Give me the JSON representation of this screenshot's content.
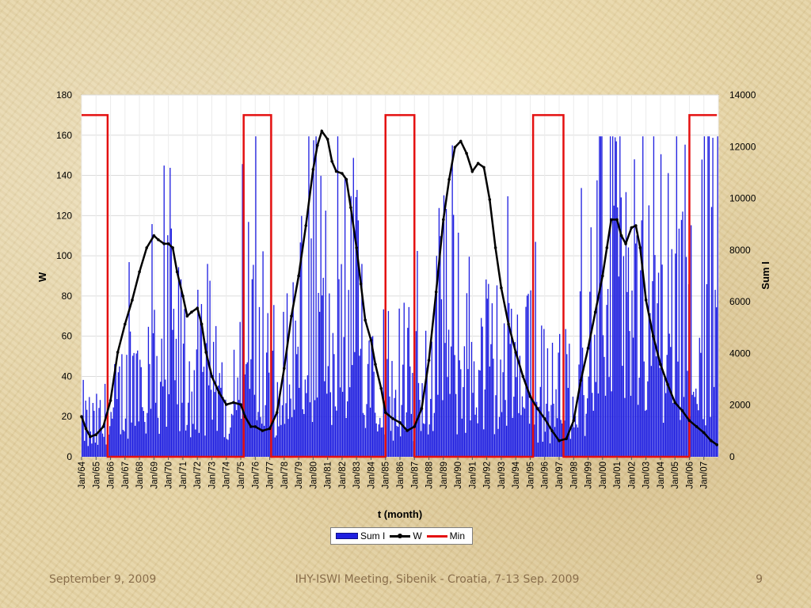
{
  "footer": {
    "date": "September 9, 2009",
    "meeting": "IHY-ISWI Meeting, Sibenik - Croatia, 7-13 Sep. 2009",
    "page": "9"
  },
  "colors": {
    "bars": "#1f1fe0",
    "w_line": "#000000",
    "min_line": "#e41010",
    "grid": "#dcdcdc"
  },
  "chart_data": {
    "type": "bar+line",
    "xlabel": "t (month)",
    "ylabel_left": "W",
    "ylabel_right": "Sum I",
    "ylim_left": [
      0,
      180
    ],
    "yticks_left": [
      0,
      20,
      40,
      60,
      80,
      100,
      120,
      140,
      160,
      180
    ],
    "ylim_right": [
      0,
      14000
    ],
    "yticks_right": [
      0,
      2000,
      4000,
      6000,
      8000,
      10000,
      12000,
      14000
    ],
    "grid": true,
    "legend_position": "bottom",
    "x_start": "Jan/64",
    "x_end": "Dec/07",
    "categories": [
      "Jan/64",
      "Jan/65",
      "Jan/66",
      "Jan/67",
      "Jan/68",
      "Jan/69",
      "Jan/70",
      "Jan/71",
      "Jan/72",
      "Jan/73",
      "Jan/74",
      "Jan/75",
      "Jan/76",
      "Jan/77",
      "Jan/78",
      "Jan/79",
      "Jan/80",
      "Jan/81",
      "Jan/82",
      "Jan/83",
      "Jan/84",
      "Jan/85",
      "Jan/86",
      "Jan/87",
      "Jan/88",
      "Jan/89",
      "Jan/90",
      "Jan/91",
      "Jan/92",
      "Jan/93",
      "Jan/94",
      "Jan/95",
      "Jan/96",
      "Jan/97",
      "Jan/98",
      "Jan/99",
      "Jan/00",
      "Jan/01",
      "Jan/02",
      "Jan/03",
      "Jan/04",
      "Jan/05",
      "Jan/06",
      "Jan/07"
    ],
    "series": [
      {
        "name": "Sum I",
        "type": "bar",
        "axis": "right",
        "note": "monthly values, Sum I units",
        "yearly_envelope": [
          1500,
          1300,
          1800,
          2800,
          4200,
          5000,
          4500,
          3800,
          3200,
          2700,
          2400,
          6500,
          4500,
          2800,
          3600,
          5200,
          6000,
          5500,
          5400,
          6200,
          4800,
          3500,
          3500,
          2800,
          4100,
          5200,
          4800,
          4200,
          4000,
          3800,
          3500,
          3600,
          2600,
          2400,
          3400,
          4400,
          6800,
          7300,
          6600,
          6600,
          6800,
          6500,
          5800,
          6200
        ]
      },
      {
        "name": "W",
        "type": "line",
        "axis": "left",
        "x": [
          1964.0,
          1964.3,
          1964.6,
          1965.0,
          1965.5,
          1966.0,
          1966.5,
          1967.0,
          1967.5,
          1968.0,
          1968.5,
          1969.0,
          1969.3,
          1969.7,
          1970.0,
          1970.3,
          1970.6,
          1971.0,
          1971.3,
          1971.6,
          1972.0,
          1972.3,
          1972.6,
          1973.0,
          1973.5,
          1974.0,
          1974.5,
          1975.0,
          1975.3,
          1975.7,
          1976.0,
          1976.5,
          1977.0,
          1977.5,
          1978.0,
          1978.5,
          1979.0,
          1979.5,
          1980.0,
          1980.3,
          1980.6,
          1981.0,
          1981.3,
          1981.6,
          1982.0,
          1982.3,
          1982.6,
          1983.0,
          1983.3,
          1983.6,
          1984.0,
          1984.3,
          1984.7,
          1985.0,
          1985.5,
          1986.0,
          1986.5,
          1987.0,
          1987.5,
          1988.0,
          1988.5,
          1989.0,
          1989.4,
          1989.8,
          1990.2,
          1990.6,
          1991.0,
          1991.4,
          1991.8,
          1992.2,
          1992.6,
          1993.0,
          1993.5,
          1994.0,
          1994.5,
          1995.0,
          1995.5,
          1996.0,
          1996.5,
          1997.0,
          1997.5,
          1998.0,
          1998.5,
          1999.0,
          1999.5,
          2000.0,
          2000.3,
          2000.6,
          2001.0,
          2001.3,
          2001.6,
          2002.0,
          2002.3,
          2002.6,
          2003.0,
          2003.5,
          2004.0,
          2004.5,
          2005.0,
          2005.5,
          2006.0,
          2006.5,
          2007.0,
          2007.5,
          2007.9
        ],
        "values": [
          20,
          14,
          10,
          11,
          15,
          28,
          52,
          66,
          78,
          92,
          104,
          110,
          108,
          106,
          106,
          104,
          92,
          80,
          70,
          72,
          74,
          66,
          52,
          40,
          32,
          26,
          27,
          26,
          20,
          15,
          15,
          13,
          14,
          22,
          44,
          70,
          90,
          115,
          143,
          155,
          162,
          158,
          147,
          142,
          141,
          138,
          124,
          104,
          86,
          68,
          58,
          46,
          34,
          22,
          19,
          17,
          13,
          15,
          24,
          48,
          82,
          118,
          138,
          154,
          157,
          151,
          142,
          146,
          144,
          128,
          104,
          84,
          66,
          52,
          40,
          30,
          24,
          19,
          13,
          8,
          9,
          18,
          38,
          54,
          72,
          90,
          104,
          118,
          118,
          110,
          106,
          114,
          115,
          104,
          78,
          60,
          46,
          36,
          27,
          23,
          18,
          15,
          12,
          8,
          6
        ]
      },
      {
        "name": "Min",
        "type": "step",
        "axis": "left",
        "high_value": 170,
        "low_value": 0,
        "high_intervals": [
          [
            1964.0,
            1965.8
          ],
          [
            1975.2,
            1977.1
          ],
          [
            1985.0,
            1987.0
          ],
          [
            1995.2,
            1997.3
          ],
          [
            2006.0,
            2007.9
          ]
        ]
      }
    ]
  }
}
